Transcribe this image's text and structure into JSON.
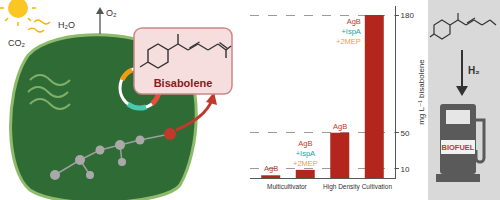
{
  "chart_data": {
    "type": "bar",
    "categories": [
      "AgB",
      "AgB +IspA +2MEP",
      "AgB",
      "AgB +IspA +2MEP"
    ],
    "values": [
      3,
      9,
      50,
      180
    ],
    "color": "#b3261e",
    "ylim": [
      0,
      190
    ],
    "yticks": [
      10,
      50,
      180
    ],
    "grid": true,
    "y_label": "mg L⁻¹ bisabolene",
    "tick_labels": "y",
    "label_colors": {
      "AgB": "#c0392b",
      "+IspA": "#17a2a2",
      "+2MEP": "#e8a33d"
    },
    "annotations": [
      {
        "text": "Multicultivator",
        "x": 0.5
      },
      {
        "text": "High Density Cultivation",
        "x": 2.5
      }
    ]
  },
  "diagram": {
    "inputs": [
      "CO₂",
      "H₂O"
    ],
    "output": "O₂",
    "product": "Bisabolene",
    "reagent": "H₂",
    "fuel": "BIOFUEL"
  }
}
